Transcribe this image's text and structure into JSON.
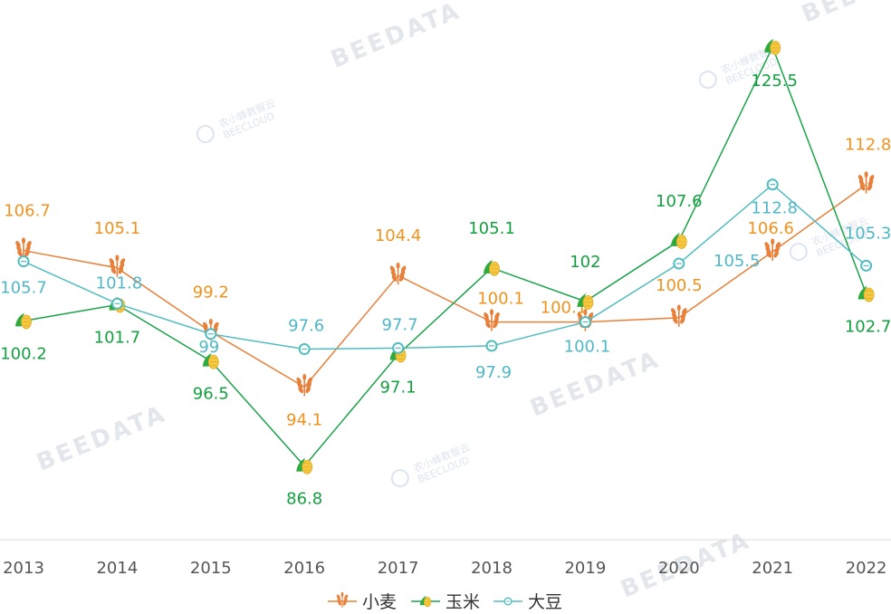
{
  "chart_data": {
    "type": "line",
    "categories": [
      "2013",
      "2014",
      "2015",
      "2016",
      "2017",
      "2018",
      "2019",
      "2020",
      "2021",
      "2022"
    ],
    "series": [
      {
        "name": "小麦",
        "color": "#e8803a",
        "label_color": "#f0921e",
        "marker": "wheat-icon",
        "values": [
          106.7,
          105.1,
          99.2,
          94.1,
          104.4,
          100.1,
          100.1,
          100.5,
          106.6,
          112.8
        ]
      },
      {
        "name": "玉米",
        "color": "#1aa34a",
        "label_color": "#13a040",
        "marker": "corn-icon",
        "values": [
          100.2,
          101.7,
          96.5,
          86.8,
          97.1,
          105.1,
          102,
          107.6,
          125.5,
          102.7
        ]
      },
      {
        "name": "大豆",
        "color": "#52bcc0",
        "label_color": "#4fb8c6",
        "marker": "soybean-icon",
        "values": [
          105.7,
          101.8,
          99,
          97.6,
          97.7,
          97.9,
          100.1,
          105.5,
          112.8,
          105.3
        ]
      }
    ],
    "ylim": [
      80,
      129
    ],
    "grid": false,
    "legend": "bottom-center"
  },
  "watermark": {
    "brand": "BEEDATA",
    "sub": "农小蜂数智云",
    "sub2": "BEECLOUD"
  }
}
